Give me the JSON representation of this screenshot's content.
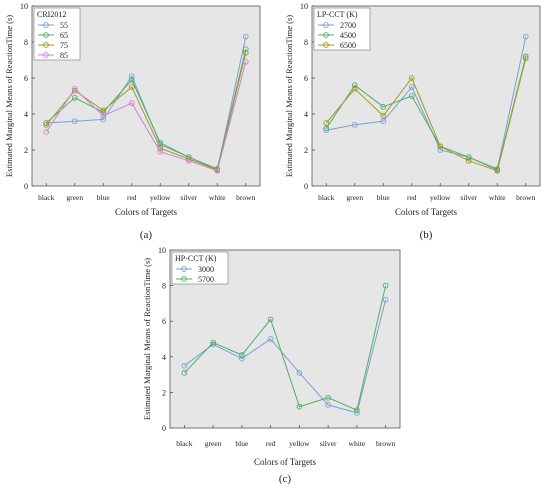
{
  "chart_data": [
    {
      "type": "line",
      "panel_label": "(a)",
      "xlabel": "Colors of Targets",
      "ylabel": "Estimated Marginal Means of ReactionTime (s)",
      "categories": [
        "black",
        "green",
        "blue",
        "red",
        "yellow",
        "silver",
        "white",
        "brown"
      ],
      "ylim": [
        0,
        10
      ],
      "yticks": [
        0,
        2,
        4,
        6,
        8,
        10
      ],
      "grid": false,
      "legend_position": "top-left",
      "legend_title": "CRI2012",
      "series": [
        {
          "name": "55",
          "color": "#7b9fd6",
          "values": [
            3.5,
            3.6,
            3.7,
            6.1,
            2.3,
            1.6,
            0.9,
            8.3
          ]
        },
        {
          "name": "65",
          "color": "#4fae6b",
          "values": [
            3.5,
            4.9,
            4.1,
            5.9,
            2.4,
            1.6,
            0.95,
            7.6
          ]
        },
        {
          "name": "75",
          "color": "#a29a1c",
          "values": [
            3.4,
            5.3,
            4.2,
            5.5,
            2.1,
            1.5,
            0.9,
            7.4
          ]
        },
        {
          "name": "85",
          "color": "#cc82d6",
          "values": [
            3.0,
            5.4,
            3.9,
            4.6,
            1.9,
            1.4,
            0.85,
            6.9
          ]
        }
      ]
    },
    {
      "type": "line",
      "panel_label": "(b)",
      "xlabel": "Colors of Targets",
      "ylabel": "Estimated Marginal Means of ReactionTime (s)",
      "categories": [
        "black",
        "green",
        "blue",
        "red",
        "yellow",
        "silver",
        "white",
        "brown"
      ],
      "ylim": [
        0,
        10
      ],
      "yticks": [
        0,
        2,
        4,
        6,
        8,
        10
      ],
      "grid": false,
      "legend_position": "top-left",
      "legend_title": "LP-CCT (K)",
      "series": [
        {
          "name": "2700",
          "color": "#7b9fd6",
          "values": [
            3.1,
            3.4,
            3.6,
            5.5,
            2.0,
            1.6,
            0.95,
            8.3
          ]
        },
        {
          "name": "4500",
          "color": "#4fae6b",
          "values": [
            3.2,
            5.6,
            4.4,
            5.0,
            2.2,
            1.6,
            0.9,
            7.2
          ]
        },
        {
          "name": "6500",
          "color": "#a29a1c",
          "values": [
            3.5,
            5.4,
            3.9,
            6.0,
            2.2,
            1.4,
            0.85,
            7.1
          ]
        }
      ]
    },
    {
      "type": "line",
      "panel_label": "(c)",
      "xlabel": "Colors of Targets",
      "ylabel": "Estimated Marginal Means of ReactionTime (s)",
      "categories": [
        "black",
        "green",
        "blue",
        "red",
        "yellow",
        "silver",
        "white",
        "brown"
      ],
      "ylim": [
        0,
        10
      ],
      "yticks": [
        0,
        2,
        4,
        6,
        8,
        10
      ],
      "grid": false,
      "legend_position": "top-left",
      "legend_title": "HP-CCT (K)",
      "series": [
        {
          "name": "3000",
          "color": "#7b9fd6",
          "values": [
            3.5,
            4.7,
            3.9,
            5.0,
            3.1,
            1.3,
            0.85,
            7.2
          ]
        },
        {
          "name": "5700",
          "color": "#4fae6b",
          "values": [
            3.1,
            4.8,
            4.1,
            6.1,
            1.2,
            1.7,
            1.0,
            8.0
          ]
        }
      ]
    }
  ]
}
